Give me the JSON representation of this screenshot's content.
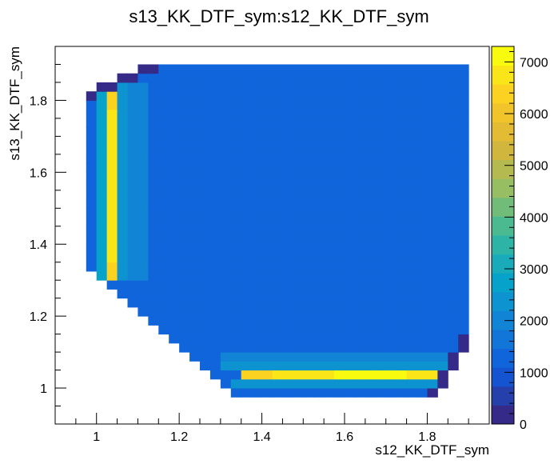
{
  "chart_data": {
    "type": "heatmap",
    "title": "s13_KK_DTF_sym:s12_KK_DTF_sym",
    "xlabel": "s12_KK_DTF_sym",
    "ylabel": "s13_KK_DTF_sym",
    "xlim": [
      0.9,
      1.95
    ],
    "ylim": [
      0.9,
      1.95
    ],
    "zlim": [
      0,
      7300
    ],
    "x_ticks": [
      "1",
      "1.2",
      "1.4",
      "1.6",
      "1.8"
    ],
    "y_ticks": [
      "1",
      "1.2",
      "1.4",
      "1.6",
      "1.8"
    ],
    "colorbar_ticks": [
      "0",
      "1000",
      "2000",
      "3000",
      "4000",
      "5000",
      "6000",
      "7000"
    ],
    "grid": false,
    "palette": "kBird",
    "bins": 40,
    "bin_width": 0.025,
    "x_range": [
      0.9,
      1.9
    ],
    "y_range": [
      0.9,
      1.9
    ],
    "region": "Dalitz boundary with edge peaks: bright band along s12 ≈ 1.04 (s13 1.30–1.84) and along s13 ≈ 1.04 (s12 1.35–1.85), bulk ≈ 1500",
    "colors": {
      "low": "#352a87",
      "bulk": "#1f74d9",
      "mid": "#2ab1bd",
      "high": "#f0cf2f",
      "max": "#f9fb0e"
    }
  }
}
